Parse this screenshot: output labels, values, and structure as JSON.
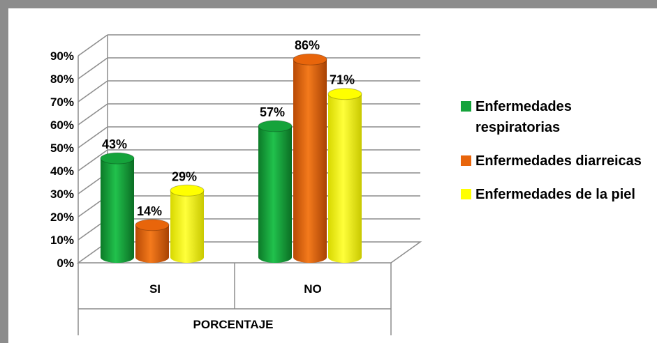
{
  "chart_data": {
    "type": "bar",
    "categories": [
      "SI",
      "NO"
    ],
    "xlabel": "PORCENTAJE",
    "ylim": [
      0,
      90
    ],
    "yticks": [
      "0%",
      "10%",
      "20%",
      "30%",
      "40%",
      "50%",
      "60%",
      "70%",
      "80%",
      "90%"
    ],
    "grid": true,
    "legend_position": "right",
    "series": [
      {
        "name": "Enfermedades respiratorias",
        "color": "#15a33b",
        "values": [
          43,
          57
        ],
        "labels": [
          "43%",
          "57%"
        ]
      },
      {
        "name": "Enfermedades diarreicas",
        "color": "#e8650b",
        "values": [
          14,
          86
        ],
        "labels": [
          "14%",
          "86%"
        ]
      },
      {
        "name": "Enfermedades de la piel",
        "color": "#ffff00",
        "values": [
          29,
          71
        ],
        "labels": [
          "29%",
          "71%"
        ]
      }
    ]
  }
}
